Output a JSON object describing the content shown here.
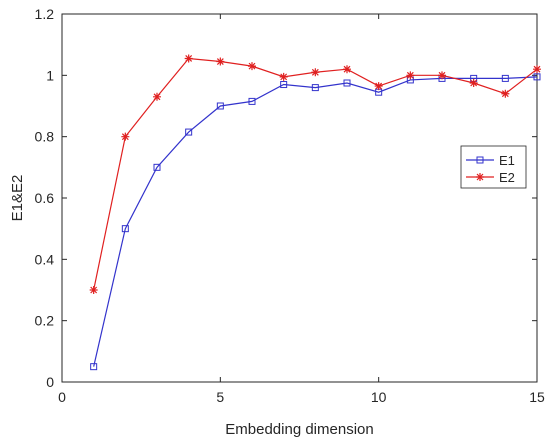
{
  "chart_data": {
    "type": "line",
    "xlabel": "Embedding dimension",
    "ylabel": "E1&E2",
    "xlim": [
      0,
      15
    ],
    "ylim": [
      0,
      1.2
    ],
    "xticks": [
      0,
      5,
      10,
      15
    ],
    "yticks": [
      0,
      0.2,
      0.4,
      0.6,
      0.8,
      1,
      1.2
    ],
    "grid": false,
    "legend_position": "right",
    "series": [
      {
        "name": "E1",
        "color": "#3333cc",
        "marker": "square",
        "x": [
          1,
          2,
          3,
          4,
          5,
          6,
          7,
          8,
          9,
          10,
          11,
          12,
          13,
          14,
          15
        ],
        "y": [
          0.05,
          0.5,
          0.7,
          0.815,
          0.9,
          0.915,
          0.97,
          0.96,
          0.975,
          0.945,
          0.985,
          0.99,
          0.99,
          0.99,
          0.995
        ]
      },
      {
        "name": "E2",
        "color": "#e02020",
        "marker": "star",
        "x": [
          1,
          2,
          3,
          4,
          5,
          6,
          7,
          8,
          9,
          10,
          11,
          12,
          13,
          14,
          15
        ],
        "y": [
          0.3,
          0.8,
          0.93,
          1.055,
          1.045,
          1.03,
          0.995,
          1.01,
          1.02,
          0.965,
          1.0,
          1.0,
          0.975,
          0.94,
          1.02
        ]
      }
    ]
  }
}
